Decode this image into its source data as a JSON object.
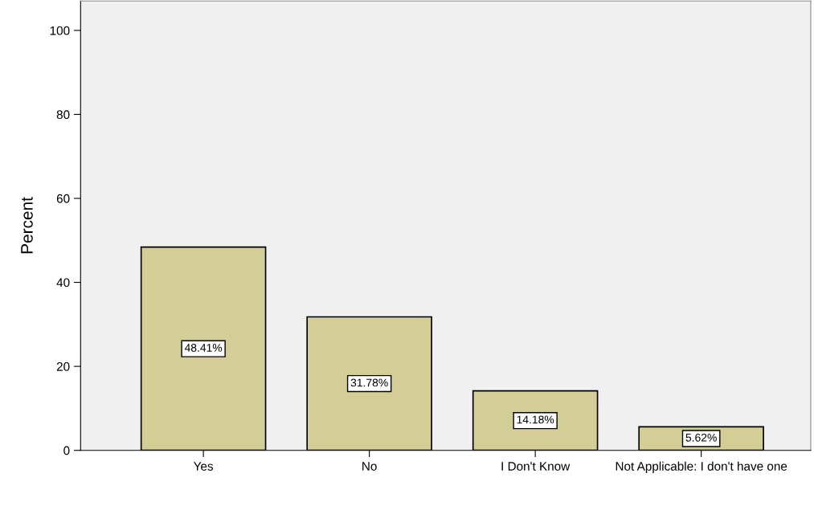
{
  "chart_data": {
    "type": "bar",
    "ylabel": "Percent",
    "categories": [
      "Yes",
      "No",
      "I Don't Know",
      "Not Applicable: I don't have one"
    ],
    "values": [
      48.41,
      31.78,
      14.18,
      5.62
    ],
    "value_labels": [
      "48.41%",
      "31.78%",
      "14.18%",
      "5.62%"
    ],
    "color": "#d3ce96",
    "ylim": [
      0,
      107
    ],
    "yticks": [
      0,
      20,
      40,
      60,
      80,
      100
    ],
    "grid": false
  }
}
